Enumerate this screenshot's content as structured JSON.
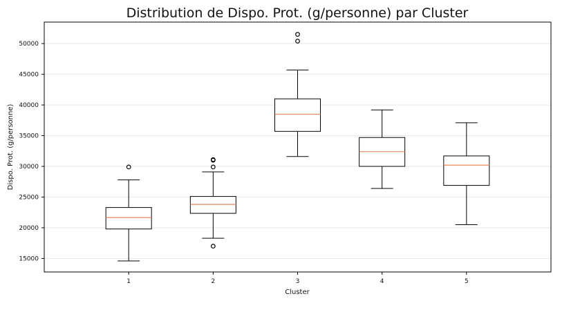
{
  "chart_data": {
    "type": "box",
    "title": "Distribution de Dispo. Prot. (g/personne) par Cluster",
    "xlabel": "Cluster",
    "ylabel": "Dispo. Prot. (g/personne)",
    "ylim": [
      12800,
      53500
    ],
    "yticks": [
      15000,
      20000,
      25000,
      30000,
      35000,
      40000,
      45000,
      50000
    ],
    "ytick_labels": [
      "15000",
      "20000",
      "25000",
      "30000",
      "35000",
      "40000",
      "45000",
      "50000"
    ],
    "grid": "horizontal",
    "colors": {
      "box": "#000000",
      "median": "#e8865a",
      "grid": "#e6e6e6",
      "frame": "#000000"
    },
    "boxes": [
      {
        "category": "1",
        "whisker_low": 14600,
        "q1": 19800,
        "median": 21650,
        "q3": 23300,
        "whisker_high": 27800,
        "outliers": [
          29900
        ]
      },
      {
        "category": "2",
        "whisker_low": 18300,
        "q1": 22350,
        "median": 23800,
        "q3": 25100,
        "whisker_high": 29100,
        "outliers": [
          17000,
          29900,
          31000,
          31100
        ]
      },
      {
        "category": "3",
        "whisker_low": 31600,
        "q1": 35700,
        "median": 38500,
        "q3": 41000,
        "whisker_high": 45700,
        "outliers": [
          50400,
          51500
        ]
      },
      {
        "category": "4",
        "whisker_low": 26400,
        "q1": 30000,
        "median": 32400,
        "q3": 34700,
        "whisker_high": 39200,
        "outliers": []
      },
      {
        "category": "5",
        "whisker_low": 20500,
        "q1": 26900,
        "median": 30200,
        "q3": 31700,
        "whisker_high": 37100,
        "outliers": []
      }
    ]
  }
}
